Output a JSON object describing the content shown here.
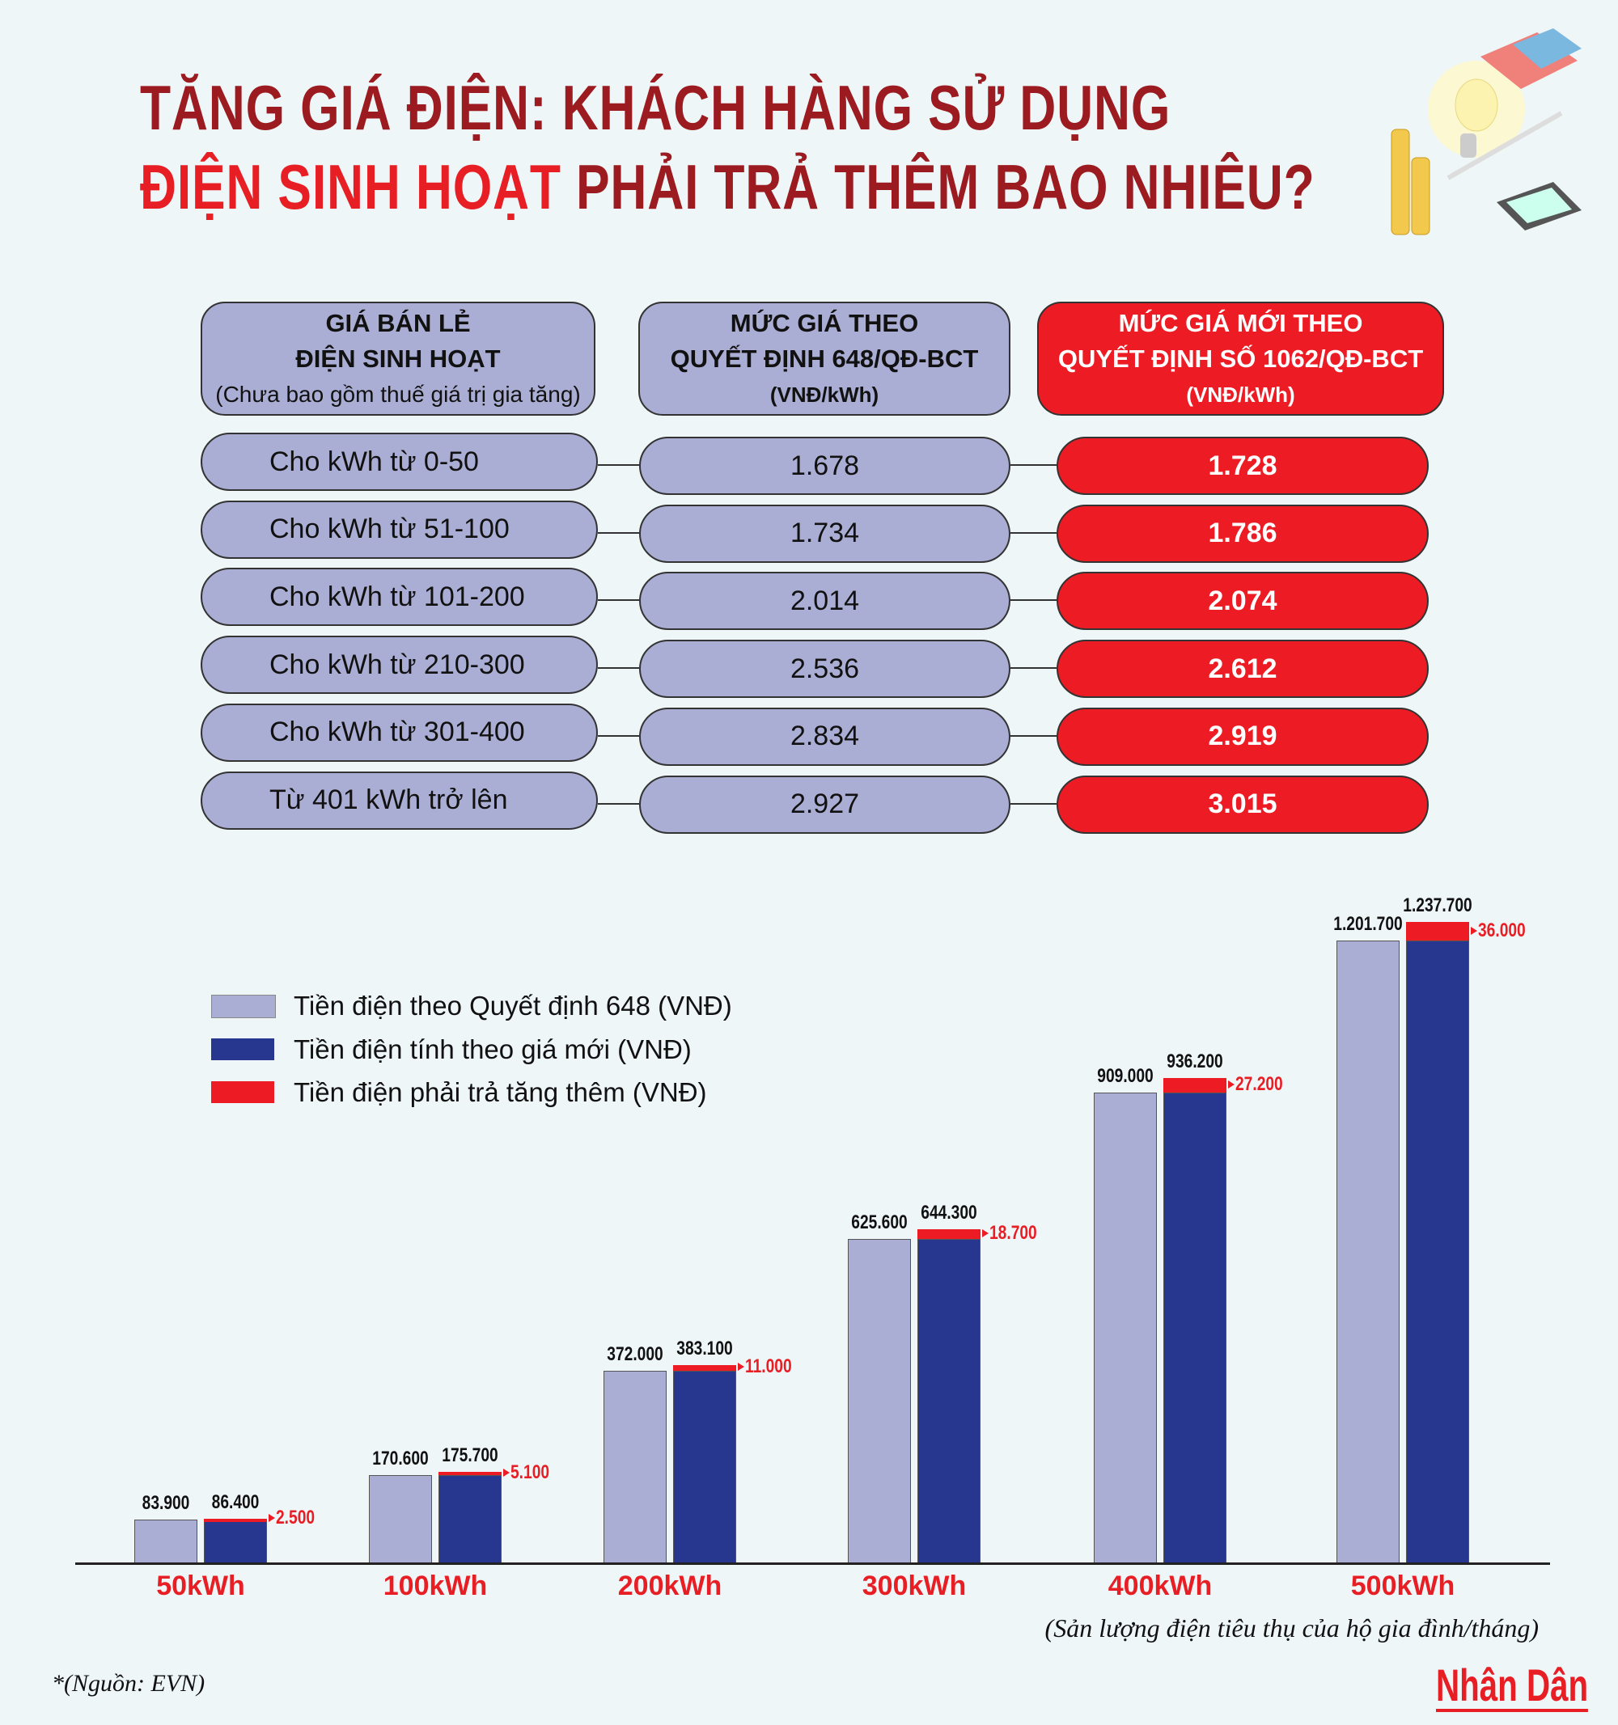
{
  "title": {
    "line1": "TĂNG GIÁ ĐIỆN: KHÁCH HÀNG SỬ DỤNG",
    "line2_highlight": "ĐIỆN SINH HOẠT",
    "line2_rest": " PHẢI TRẢ THÊM BAO NHIÊU?"
  },
  "table": {
    "headers": [
      {
        "line1": "GIÁ BÁN LẺ",
        "line2": "ĐIỆN SINH HOẠT",
        "line3": "(Chưa bao gồm thuế giá trị gia tăng)"
      },
      {
        "line1": "MỨC GIÁ THEO",
        "line2": "QUYẾT ĐỊNH 648/QĐ-BCT",
        "line3": "(VNĐ/kWh)"
      },
      {
        "line1": "MỨC GIÁ MỚI THEO",
        "line2": "QUYẾT ĐỊNH SỐ 1062/QĐ-BCT",
        "line3": "(VNĐ/kWh)"
      }
    ],
    "rows": [
      {
        "tier": "Cho kWh từ 0-50",
        "old": "1.678",
        "new": "1.728"
      },
      {
        "tier": "Cho kWh từ 51-100",
        "old": "1.734",
        "new": "1.786"
      },
      {
        "tier": "Cho kWh từ 101-200",
        "old": "2.014",
        "new": "2.074"
      },
      {
        "tier": "Cho kWh từ 210-300",
        "old": "2.536",
        "new": "2.612"
      },
      {
        "tier": "Cho kWh từ 301-400",
        "old": "2.834",
        "new": "2.919"
      },
      {
        "tier": "Từ 401 kWh trở lên",
        "old": "2.927",
        "new": "3.015"
      }
    ]
  },
  "chart_data": {
    "type": "bar",
    "categories": [
      "50kWh",
      "100kWh",
      "200kWh",
      "300kWh",
      "400kWh",
      "500kWh"
    ],
    "series": [
      {
        "name": "Tiền điện theo Quyết định 648 (VNĐ)",
        "color": "#abaed4",
        "values": [
          83900,
          170600,
          372000,
          625600,
          909000,
          1201700
        ],
        "labels": [
          "83.900",
          "170.600",
          "372.000",
          "625.600",
          "909.000",
          "1.201.700"
        ]
      },
      {
        "name": "Tiền điện tính theo giá mới (VNĐ)",
        "color": "#27368e",
        "values": [
          86400,
          175700,
          383100,
          644300,
          936200,
          1237700
        ],
        "labels": [
          "86.400",
          "175.700",
          "383.100",
          "644.300",
          "936.200",
          "1.237.700"
        ]
      },
      {
        "name": "Tiền điện phải trả tăng thêm (VNĐ)",
        "color": "#ed1c24",
        "values": [
          2500,
          5100,
          11000,
          18700,
          27200,
          36000
        ],
        "labels": [
          "2.500",
          "5.100",
          "11.000",
          "18.700",
          "27.200",
          "36.000"
        ]
      }
    ],
    "xlabel": "(Sản lượng điện tiêu thụ của hộ gia đình/tháng)",
    "ylabel": "",
    "ylim": [
      0,
      1237700
    ],
    "grid": false,
    "legend": "top-left"
  },
  "footer": {
    "source": "*(Nguồn: EVN)",
    "logo": "Nhân Dân"
  }
}
